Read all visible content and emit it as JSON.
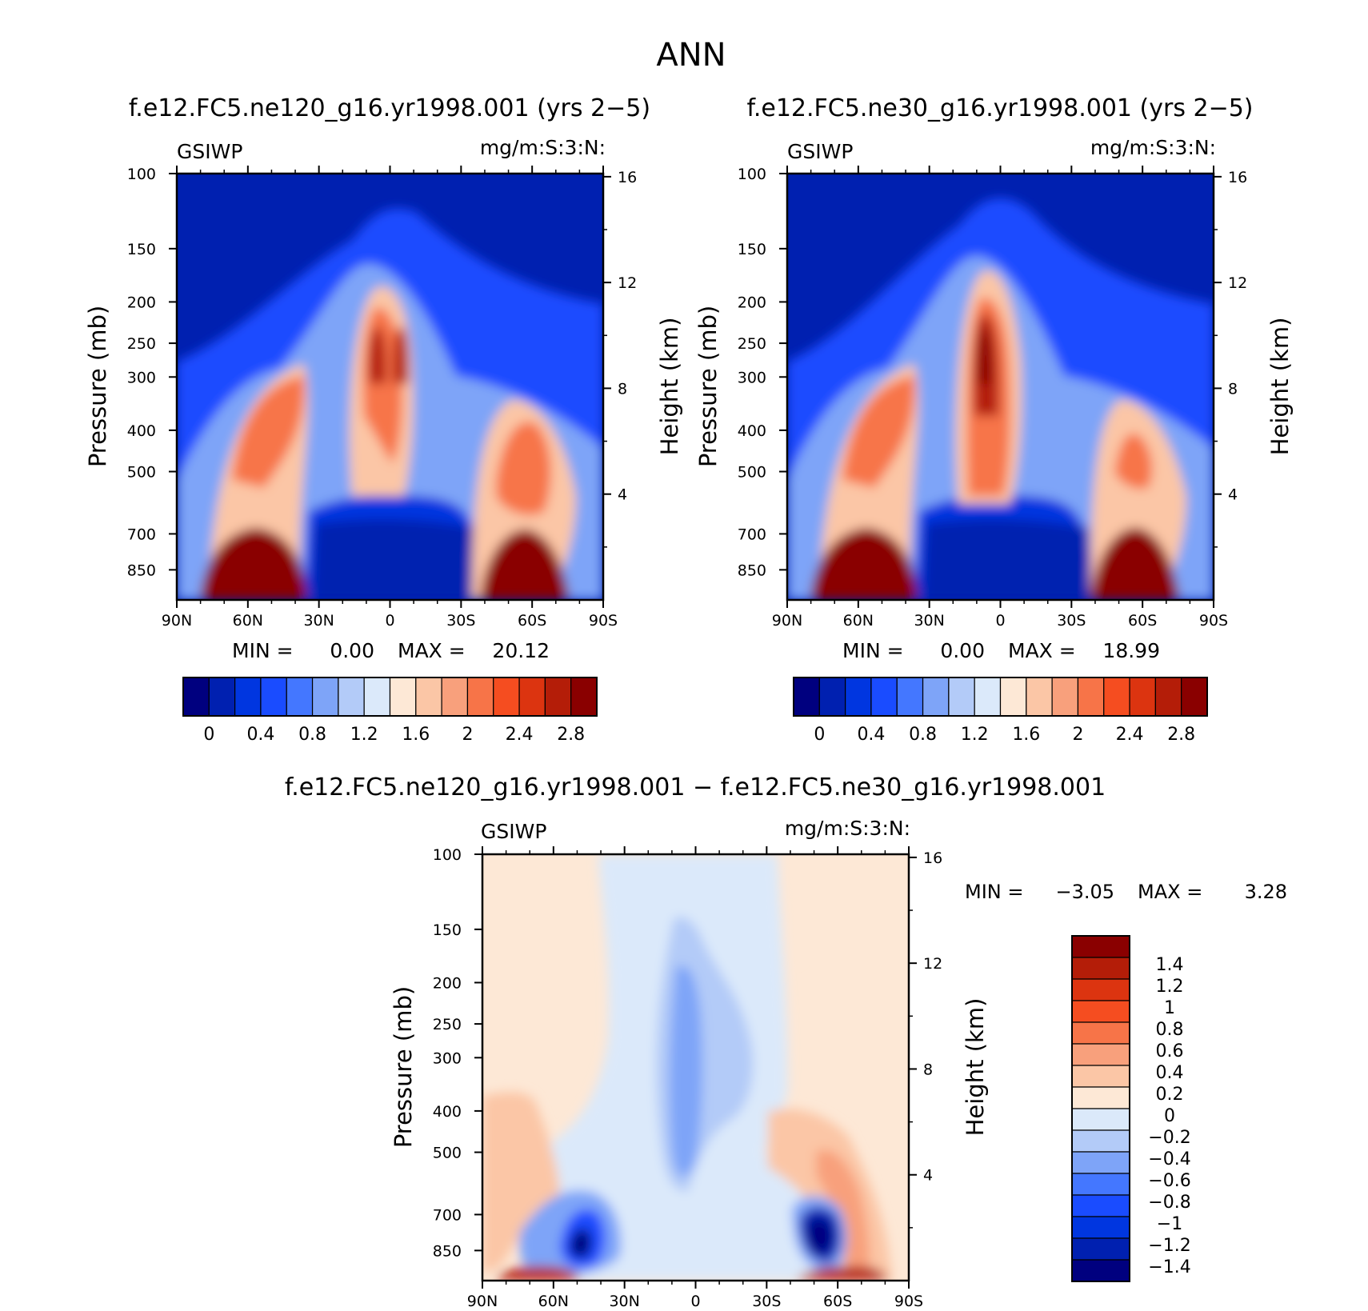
{
  "figure": {
    "title": "ANN"
  },
  "chart_data": [
    {
      "type": "heatmap",
      "id": "p1",
      "title": "f.e12.FC5.ne120_g16.yr1998.001 (yrs 2−5)",
      "variable": "GSIWP",
      "units": "mg/m:S:3:N:",
      "ylabel": "Pressure (mb)",
      "y2label": "Height (km)",
      "xticks": [
        "90N",
        "60N",
        "30N",
        "0",
        "30S",
        "60S",
        "90S"
      ],
      "pressure_ticks": [
        "100",
        "150",
        "200",
        "250",
        "300",
        "400",
        "500",
        "700",
        "850"
      ],
      "pressure_values": [
        100,
        150,
        200,
        250,
        300,
        400,
        500,
        700,
        850
      ],
      "height_ticks": [
        "16",
        "12",
        "8",
        "4"
      ],
      "height_values": [
        16,
        12,
        8,
        4
      ],
      "ylim": [
        100,
        1000
      ],
      "min_label": "MIN =",
      "min_value": "0.00",
      "max_label": "MAX =",
      "max_value": "20.12",
      "colorbar": {
        "orientation": "horizontal",
        "labels": [
          "0",
          "0.4",
          "0.8",
          "1.2",
          "1.6",
          "2",
          "2.4",
          "2.8"
        ],
        "levels": [
          -0.2,
          0,
          0.2,
          0.4,
          0.6,
          0.8,
          1.0,
          1.2,
          1.4,
          1.6,
          1.8,
          2.0,
          2.2,
          2.4,
          2.6,
          2.8,
          3.0
        ]
      }
    },
    {
      "type": "heatmap",
      "id": "p2",
      "title": "f.e12.FC5.ne30_g16.yr1998.001 (yrs 2−5)",
      "variable": "GSIWP",
      "units": "mg/m:S:3:N:",
      "ylabel": "Pressure (mb)",
      "y2label": "Height (km)",
      "xticks": [
        "90N",
        "60N",
        "30N",
        "0",
        "30S",
        "60S",
        "90S"
      ],
      "pressure_ticks": [
        "100",
        "150",
        "200",
        "250",
        "300",
        "400",
        "500",
        "700",
        "850"
      ],
      "pressure_values": [
        100,
        150,
        200,
        250,
        300,
        400,
        500,
        700,
        850
      ],
      "height_ticks": [
        "16",
        "12",
        "8",
        "4"
      ],
      "height_values": [
        16,
        12,
        8,
        4
      ],
      "ylim": [
        100,
        1000
      ],
      "min_label": "MIN =",
      "min_value": "0.00",
      "max_label": "MAX =",
      "max_value": "18.99",
      "colorbar": {
        "orientation": "horizontal",
        "labels": [
          "0",
          "0.4",
          "0.8",
          "1.2",
          "1.6",
          "2",
          "2.4",
          "2.8"
        ],
        "levels": [
          -0.2,
          0,
          0.2,
          0.4,
          0.6,
          0.8,
          1.0,
          1.2,
          1.4,
          1.6,
          1.8,
          2.0,
          2.2,
          2.4,
          2.6,
          2.8,
          3.0
        ]
      }
    },
    {
      "type": "heatmap",
      "id": "p3",
      "title": "f.e12.FC5.ne120_g16.yr1998.001 − f.e12.FC5.ne30_g16.yr1998.001",
      "variable": "GSIWP",
      "units": "mg/m:S:3:N:",
      "ylabel": "Pressure (mb)",
      "y2label": "Height (km)",
      "xticks": [
        "90N",
        "60N",
        "30N",
        "0",
        "30S",
        "60S",
        "90S"
      ],
      "pressure_ticks": [
        "100",
        "150",
        "200",
        "250",
        "300",
        "400",
        "500",
        "700",
        "850"
      ],
      "pressure_values": [
        100,
        150,
        200,
        250,
        300,
        400,
        500,
        700,
        850
      ],
      "height_ticks": [
        "16",
        "12",
        "8",
        "4"
      ],
      "height_values": [
        16,
        12,
        8,
        4
      ],
      "ylim": [
        100,
        1000
      ],
      "min_label": "MIN =",
      "min_value": "−3.05",
      "max_label": "MAX =",
      "max_value": "3.28",
      "colorbar": {
        "orientation": "vertical",
        "labels": [
          "1.4",
          "1.2",
          "1",
          "0.8",
          "0.6",
          "0.4",
          "0.2",
          "0",
          "−0.2",
          "−0.4",
          "−0.6",
          "−0.8",
          "−1",
          "−1.2",
          "−1.4"
        ],
        "levels": [
          1.6,
          1.4,
          1.2,
          1.0,
          0.8,
          0.6,
          0.4,
          0.2,
          0,
          -0.2,
          -0.4,
          -0.6,
          -0.8,
          -1.0,
          -1.2,
          -1.4,
          -1.6
        ]
      }
    }
  ],
  "palette": [
    "#00007f",
    "#0020b0",
    "#0036e0",
    "#1a4cff",
    "#4477ff",
    "#7ea4f8",
    "#b3cbf8",
    "#dbe9fa",
    "#fde8d6",
    "#fbc6a6",
    "#f8a07c",
    "#f77448",
    "#f54d20",
    "#dc3410",
    "#b41d08",
    "#8a0000"
  ]
}
